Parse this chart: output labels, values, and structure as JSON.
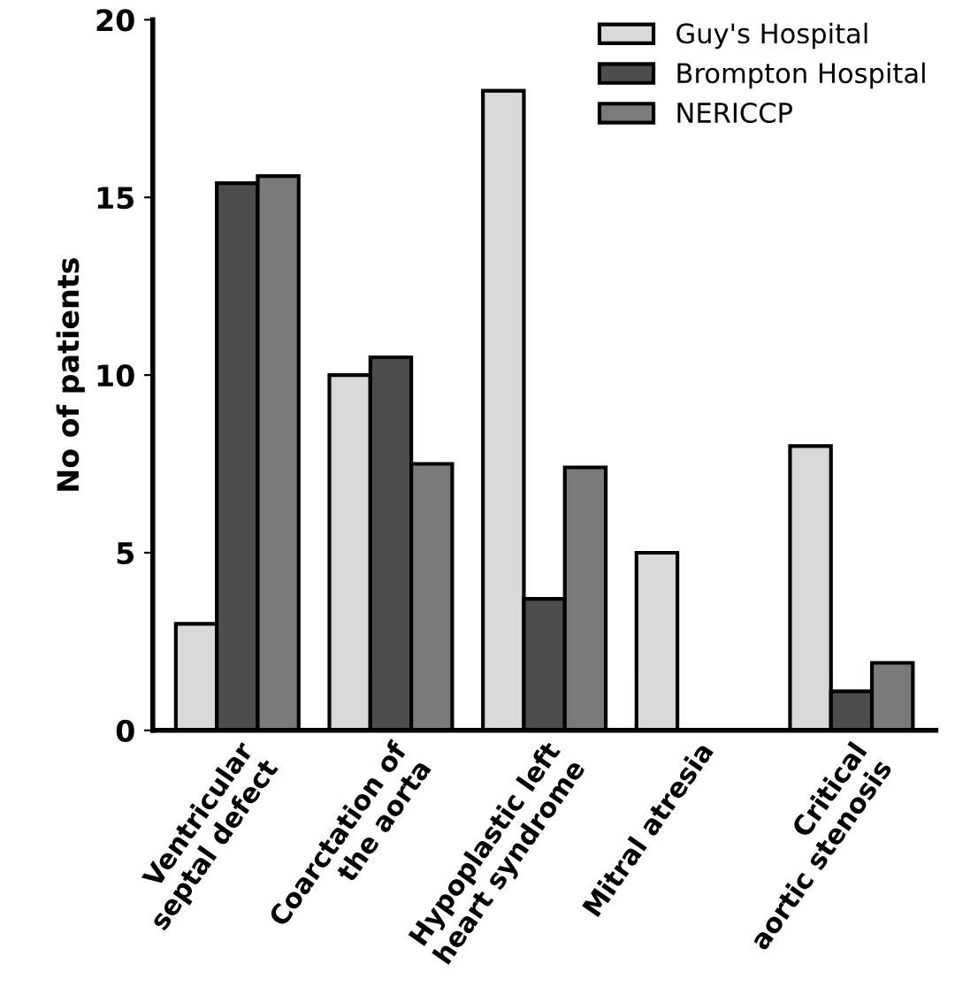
{
  "chart_data": {
    "type": "bar",
    "ylabel": "No of patients",
    "categories": [
      "Ventricular\nseptal defect",
      "Coarctation of\nthe aorta",
      "Hypoplastic left\nheart syndrome",
      "Mitral atresia",
      "Critical\naortic stenosis"
    ],
    "series": [
      {
        "name": "Guy's Hospital",
        "color": "#d9d9d9",
        "values": [
          3,
          10,
          18,
          5,
          8
        ]
      },
      {
        "name": "Brompton Hospital",
        "color": "#4d4d4d",
        "values": [
          15.4,
          10.5,
          3.7,
          null,
          1.1
        ]
      },
      {
        "name": "NERICCP",
        "color": "#7a7a7a",
        "values": [
          15.6,
          7.5,
          7.4,
          null,
          1.9
        ]
      }
    ],
    "ylim": [
      0,
      20
    ],
    "yticks": [
      0,
      5,
      10,
      15,
      20
    ],
    "grid": false,
    "legend": "top right"
  }
}
